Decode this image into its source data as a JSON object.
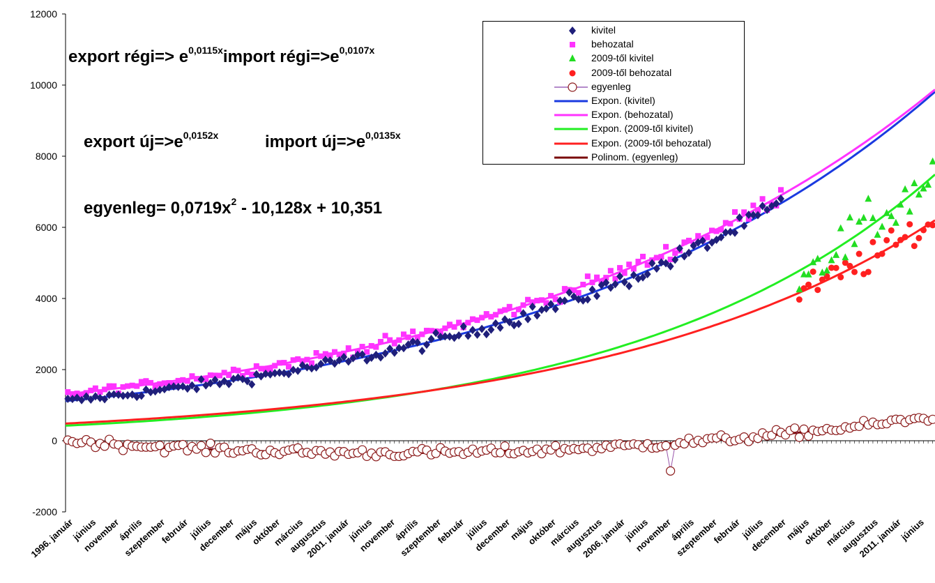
{
  "chart_data": {
    "type": "scatter",
    "title": "",
    "xlabel": "",
    "ylabel": "",
    "ylim": [
      -2000,
      12000
    ],
    "yticks": [
      "12000",
      "10000",
      "8000",
      "6000",
      "4000",
      "2000",
      "0",
      "-2000"
    ],
    "x_tick_labels": [
      "1996. január",
      "június",
      "november",
      "április",
      "szeptember",
      "február",
      "július",
      "december",
      "május",
      "október",
      "március",
      "augusztus",
      "2001. január",
      "június",
      "november",
      "április",
      "szeptember",
      "február",
      "július",
      "december",
      "május",
      "október",
      "március",
      "augusztus",
      "2006. január",
      "június",
      "november",
      "április",
      "szeptember",
      "február",
      "július",
      "december",
      "május",
      "október",
      "március",
      "augusztus",
      "2011. január",
      "június"
    ],
    "x_months": 189,
    "grid": false,
    "legend_position": "top-right",
    "annotations": {
      "export_old_pre": "export régi=> e",
      "export_old_exp": "0,0115x",
      "import_old_pre": "import régi=>e",
      "import_old_exp": "0,0107x",
      "export_new_pre": "export új=>e",
      "export_new_exp": "0,0152x",
      "import_new_pre": "import új=>e",
      "import_new_exp": "0,0135x",
      "balance_pre": "egyenleg= 0,0719x",
      "balance_exp": "2",
      "balance_post": " - 10,128x + 10,351"
    },
    "series": [
      {
        "name": "kivitel",
        "kind": "markers",
        "marker": "diamond",
        "color": "#1F1F7A",
        "x_start": 1,
        "x_end": 156,
        "trend_a": 1110,
        "trend_b": 0.0115,
        "noise": 180
      },
      {
        "name": "behozatal",
        "kind": "markers",
        "marker": "square",
        "color": "#FF33FF",
        "x_start": 1,
        "x_end": 156,
        "trend_a": 1300,
        "trend_b": 0.0107,
        "noise": 170
      },
      {
        "name": "2009-től kivitel",
        "kind": "markers",
        "marker": "triangle",
        "color": "#22DD22",
        "x_start": 160,
        "x_end": 189,
        "trend_a": 420,
        "trend_b": 0.0152,
        "noise": 420
      },
      {
        "name": "2009-től behozatal",
        "kind": "markers",
        "marker": "circle",
        "color": "#FF2020",
        "x_start": 160,
        "x_end": 189,
        "trend_a": 480,
        "trend_b": 0.0135,
        "noise": 280
      },
      {
        "name": "egyenleg",
        "kind": "markers-line",
        "marker": "open-circle",
        "color": "#8B1A1A",
        "x_start": 1,
        "x_end": 189,
        "noise": 130
      },
      {
        "name": "Expon. (kivitel)",
        "kind": "trend-exp",
        "color": "#1A3AE0",
        "a": 1110,
        "b": 0.0115
      },
      {
        "name": "Expon. (behozatal)",
        "kind": "trend-exp",
        "color": "#FF33FF",
        "a": 1300,
        "b": 0.0107
      },
      {
        "name": "Expon. (2009-től kivitel)",
        "kind": "trend-exp",
        "color": "#22EE22",
        "a": 420,
        "b": 0.0152
      },
      {
        "name": "Expon. (2009-től behozatal)",
        "kind": "trend-exp",
        "color": "#FF2020",
        "a": 480,
        "b": 0.0135
      },
      {
        "name": "Polinom. (egyenleg)",
        "kind": "trend-poly",
        "color": "#7A0A0A",
        "c2": 0.0719,
        "c1": -10.128,
        "c0": 10.351
      }
    ]
  }
}
